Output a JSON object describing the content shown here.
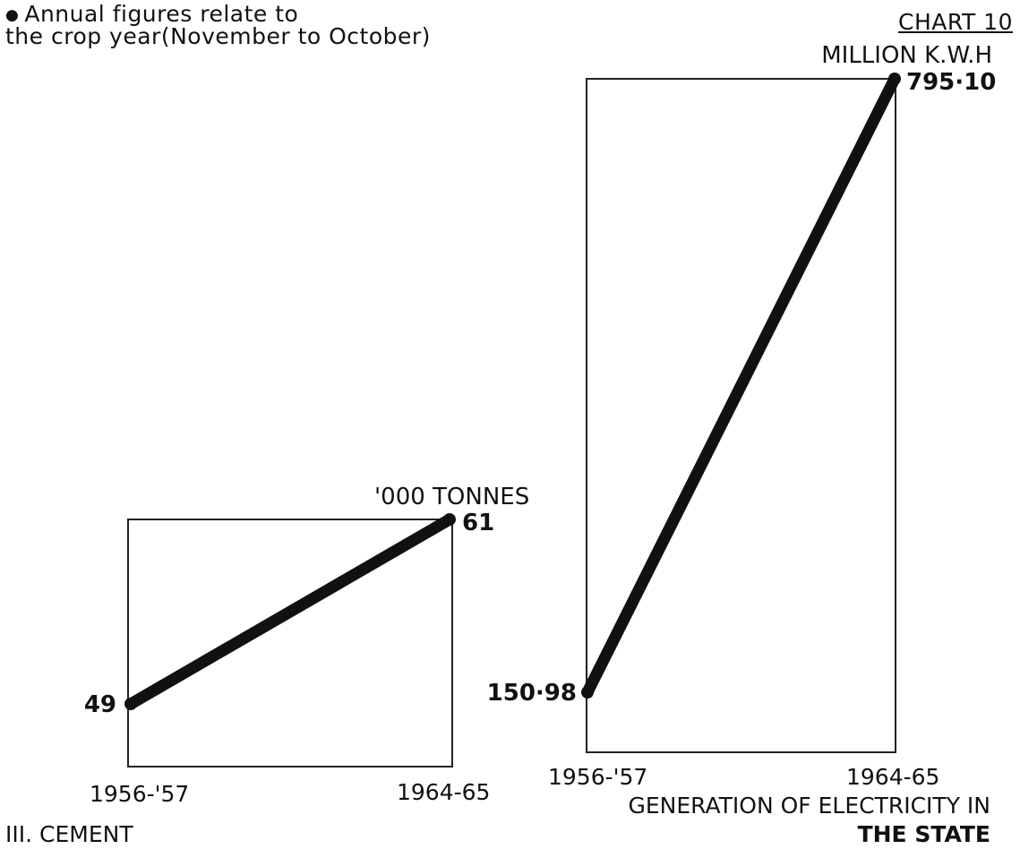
{
  "header": {
    "note_bullet": "●",
    "note_lines": [
      "Annual figures relate to",
      "the crop year(November to October)"
    ],
    "chart_number": "CHART 10"
  },
  "chart_data": [
    {
      "type": "line",
      "title": "III. CEMENT",
      "unit": "'000 TONNES",
      "categories": [
        "1956-'57",
        "1964-65"
      ],
      "values": [
        49,
        61
      ],
      "value_labels": [
        "49",
        "61"
      ],
      "grid": false
    },
    {
      "type": "line",
      "title": "GENERATION OF ELECTRICITY IN THE STATE",
      "unit": "MILLION K.W.H",
      "categories": [
        "1956-'57",
        "1964-65"
      ],
      "values": [
        150.98,
        795.1
      ],
      "value_labels": [
        "150·98",
        "795·10"
      ],
      "grid": false
    }
  ]
}
